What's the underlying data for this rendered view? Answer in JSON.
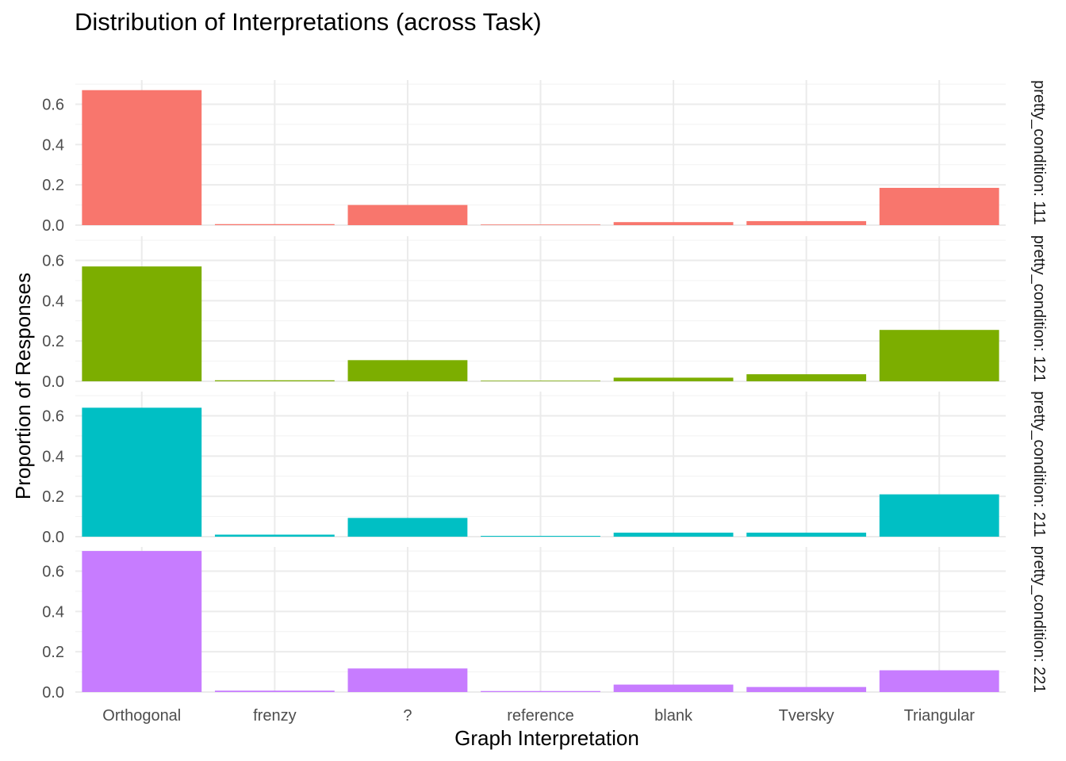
{
  "chart_data": {
    "type": "bar",
    "title": "Distribution of Interpretations (across Task)",
    "xlabel": "Graph Interpretation",
    "ylabel": "Proportion of Responses",
    "categories": [
      "Orthogonal",
      "frenzy",
      "?",
      "reference",
      "blank",
      "Tversky",
      "Triangular"
    ],
    "ylim": [
      0,
      0.72
    ],
    "yticks": [
      0.0,
      0.2,
      0.4,
      0.6
    ],
    "ytick_labels": [
      "0.0",
      "0.2",
      "0.4",
      "0.6"
    ],
    "grid": true,
    "legend": "none",
    "facets": [
      {
        "strip_label": "pretty_condition: 111",
        "color": "#F8766D",
        "values": [
          0.67,
          0.005,
          0.1,
          0.003,
          0.015,
          0.02,
          0.185
        ]
      },
      {
        "strip_label": "pretty_condition: 121",
        "color": "#7CAE00",
        "values": [
          0.57,
          0.005,
          0.105,
          0.003,
          0.018,
          0.035,
          0.255
        ]
      },
      {
        "strip_label": "pretty_condition: 211",
        "color": "#00BFC4",
        "values": [
          0.64,
          0.01,
          0.093,
          0.004,
          0.02,
          0.02,
          0.21
        ]
      },
      {
        "strip_label": "pretty_condition: 221",
        "color": "#C77CFF",
        "values": [
          0.7,
          0.007,
          0.117,
          0.005,
          0.037,
          0.025,
          0.108
        ]
      }
    ]
  }
}
